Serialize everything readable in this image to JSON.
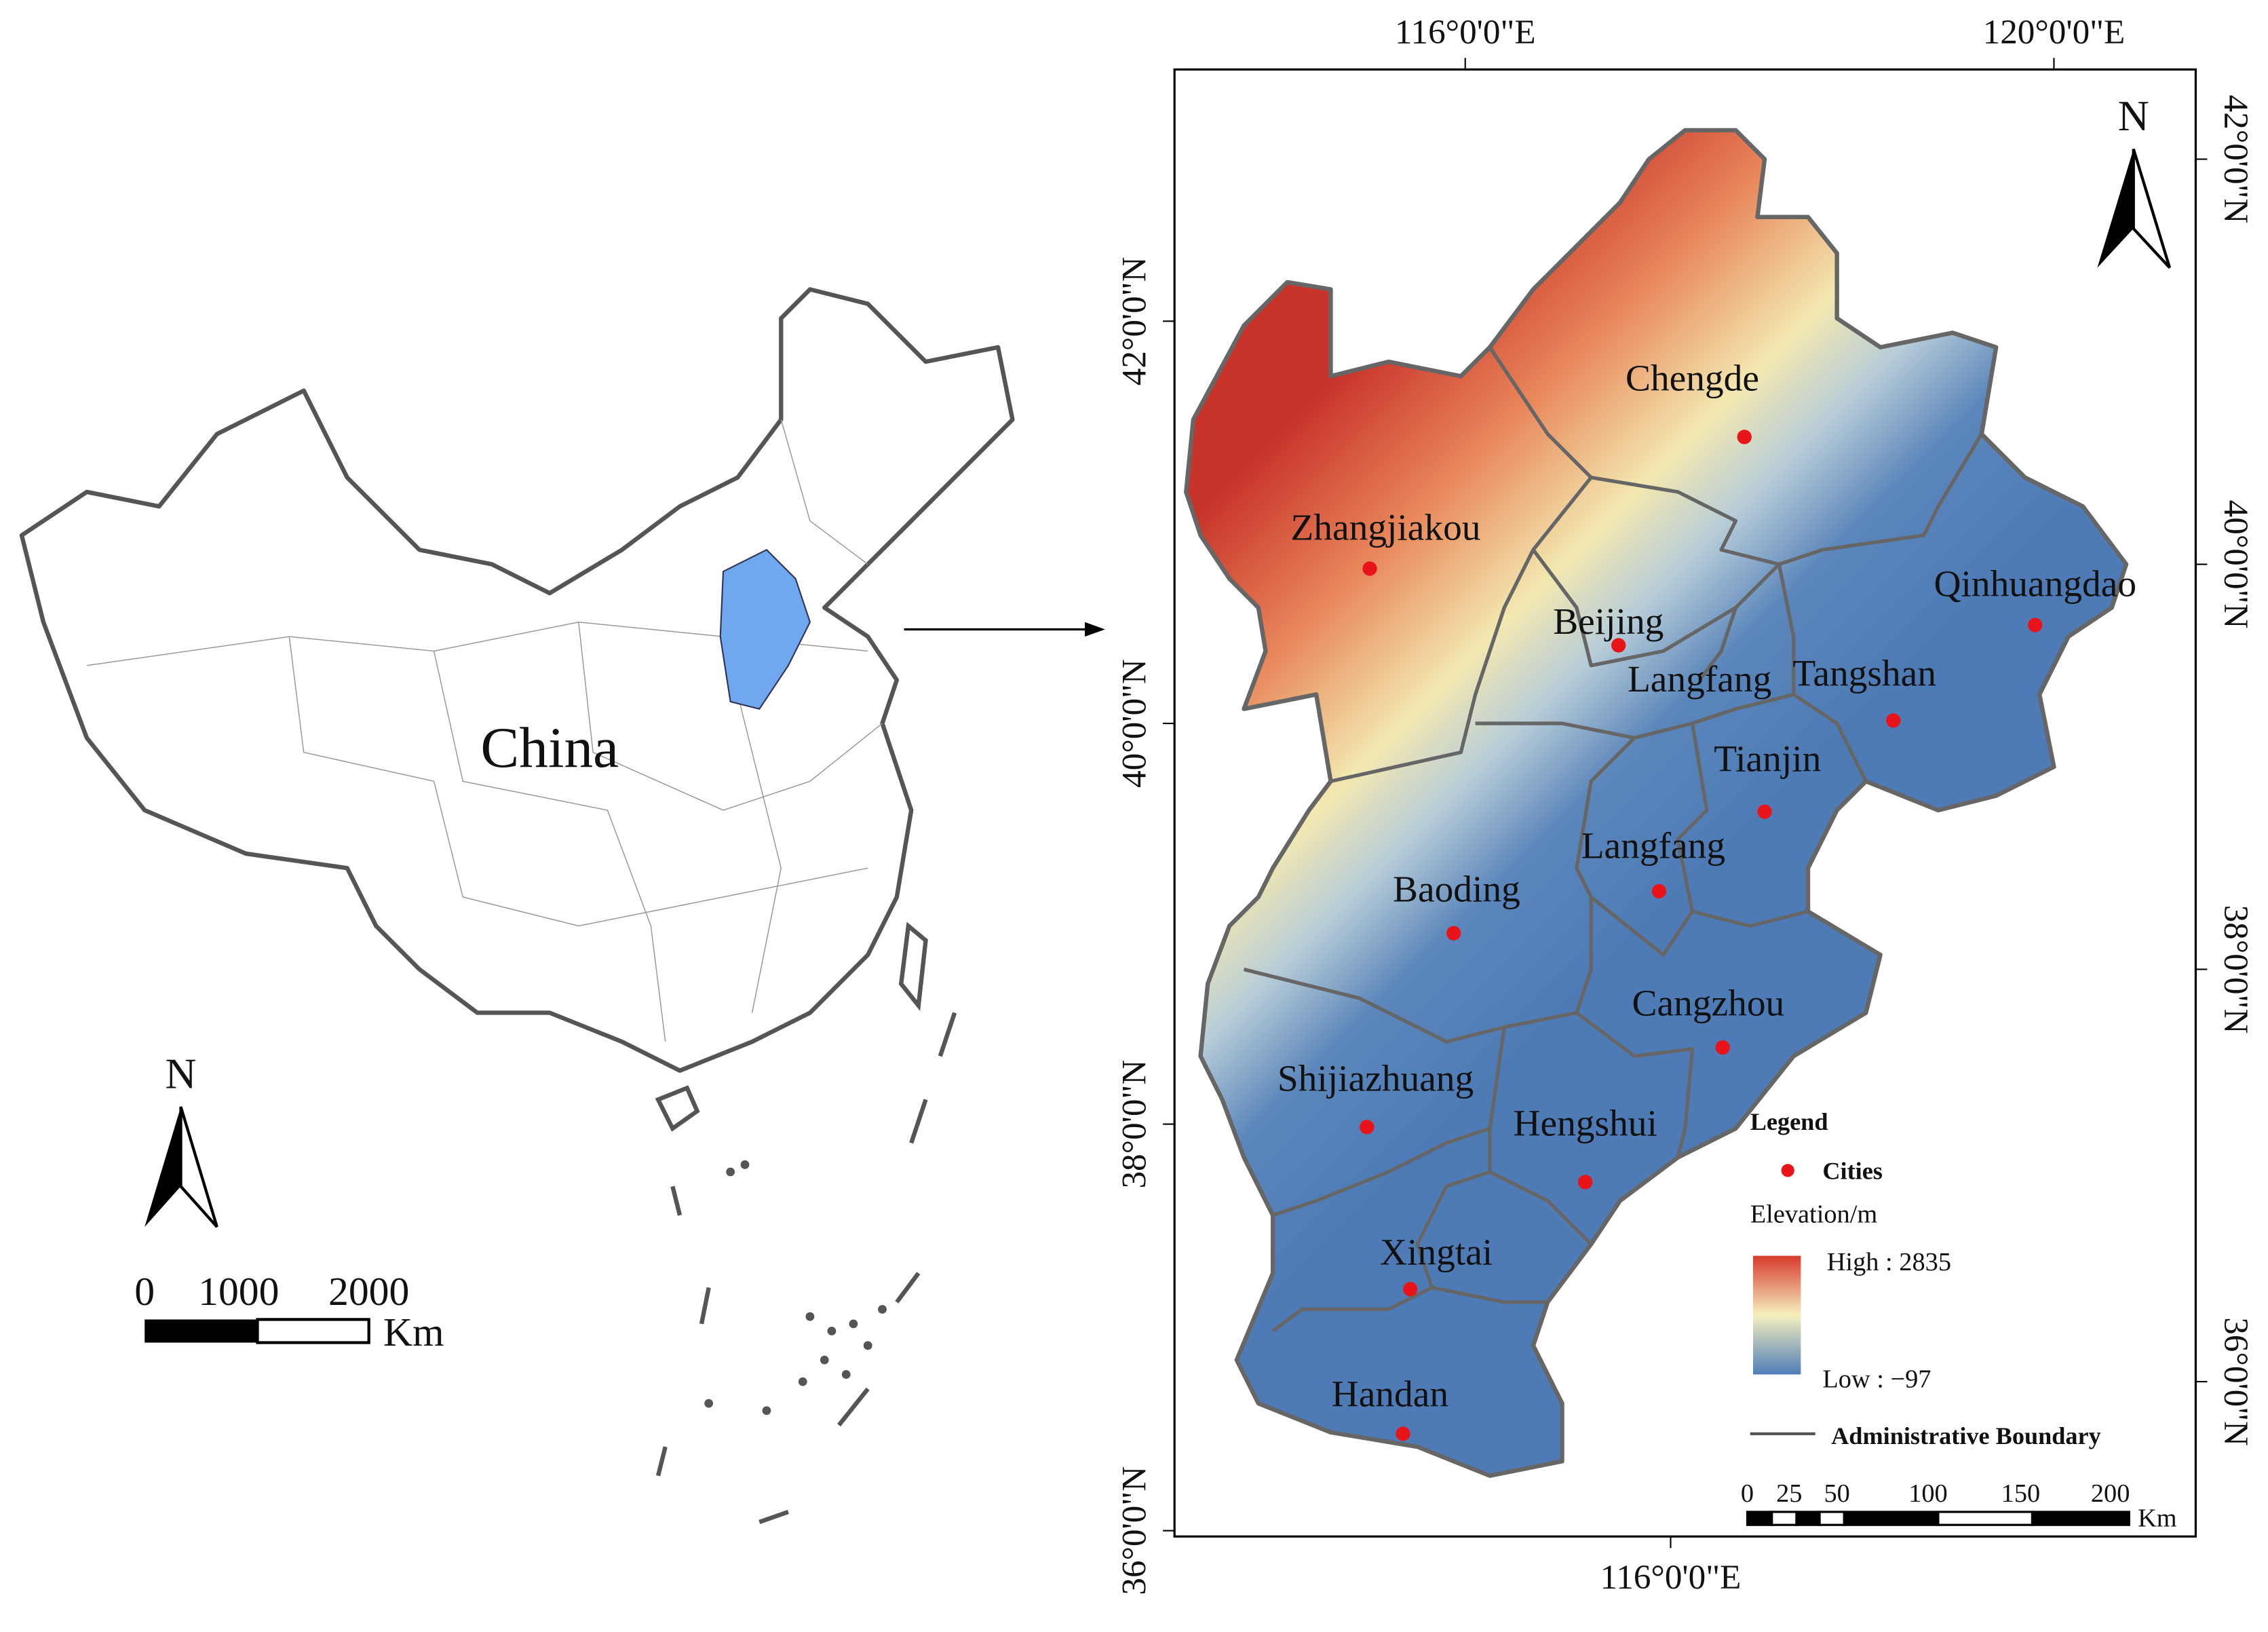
{
  "overview": {
    "label": "China",
    "north": "N",
    "scale": {
      "ticks": [
        "0",
        "1000",
        "2000"
      ],
      "unit": "Km"
    }
  },
  "detail": {
    "top_axis": [
      "116°0'0\"E",
      "120°0'0\"E"
    ],
    "bottom_axis": [
      "116°0'0\"E"
    ],
    "left_axis": [
      "42°0'0\"N",
      "40°0'0\"N",
      "38°0'0\"N",
      "36°0'0\"N"
    ],
    "right_axis": [
      "42°0'0\"N",
      "40°0'0\"N",
      "38°0'0\"N",
      "36°0'0\"N"
    ],
    "north": "N",
    "cities": [
      "Chengde",
      "Zhangjiakou",
      "Beijing",
      "Langfang",
      "Tangshan",
      "Qinhuangdao",
      "Tianjin",
      "Langfang",
      "Baoding",
      "Cangzhou",
      "Shijiazhuang",
      "Hengshui",
      "Xingtai",
      "Handan"
    ],
    "legend": {
      "title": "Legend",
      "cities": "Cities",
      "elevation": "Elevation/m",
      "high": "High : 2835",
      "low": "Low : −97",
      "boundary": "Administrative Boundary"
    },
    "scale": {
      "ticks": [
        "0",
        "25",
        "50",
        "100",
        "150",
        "200"
      ],
      "unit": "Km"
    }
  }
}
